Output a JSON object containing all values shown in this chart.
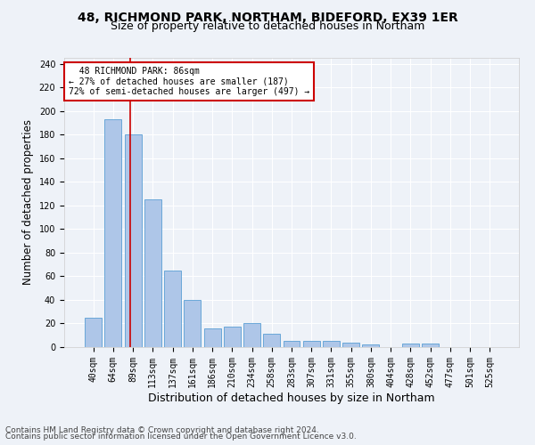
{
  "title1": "48, RICHMOND PARK, NORTHAM, BIDEFORD, EX39 1ER",
  "title2": "Size of property relative to detached houses in Northam",
  "xlabel": "Distribution of detached houses by size in Northam",
  "ylabel": "Number of detached properties",
  "categories": [
    "40sqm",
    "64sqm",
    "89sqm",
    "113sqm",
    "137sqm",
    "161sqm",
    "186sqm",
    "210sqm",
    "234sqm",
    "258sqm",
    "283sqm",
    "307sqm",
    "331sqm",
    "355sqm",
    "380sqm",
    "404sqm",
    "428sqm",
    "452sqm",
    "477sqm",
    "501sqm",
    "525sqm"
  ],
  "values": [
    25,
    193,
    180,
    125,
    65,
    40,
    16,
    17,
    20,
    11,
    5,
    5,
    5,
    4,
    2,
    0,
    3,
    3,
    0,
    0,
    0
  ],
  "bar_color": "#aec6e8",
  "bar_edge_color": "#5a9fd4",
  "subject_label": "48 RICHMOND PARK: 86sqm",
  "annotation_line1": "← 27% of detached houses are smaller (187)",
  "annotation_line2": "72% of semi-detached houses are larger (497) →",
  "annotation_box_color": "#ffffff",
  "annotation_box_edge_color": "#cc0000",
  "vline_color": "#cc0000",
  "ylim": [
    0,
    245
  ],
  "yticks": [
    0,
    20,
    40,
    60,
    80,
    100,
    120,
    140,
    160,
    180,
    200,
    220,
    240
  ],
  "footer1": "Contains HM Land Registry data © Crown copyright and database right 2024.",
  "footer2": "Contains public sector information licensed under the Open Government Licence v3.0.",
  "bg_color": "#eef2f8",
  "grid_color": "#ffffff",
  "title1_fontsize": 10,
  "title2_fontsize": 9,
  "axis_label_fontsize": 8.5,
  "tick_fontsize": 7,
  "annot_fontsize": 7,
  "footer_fontsize": 6.5
}
